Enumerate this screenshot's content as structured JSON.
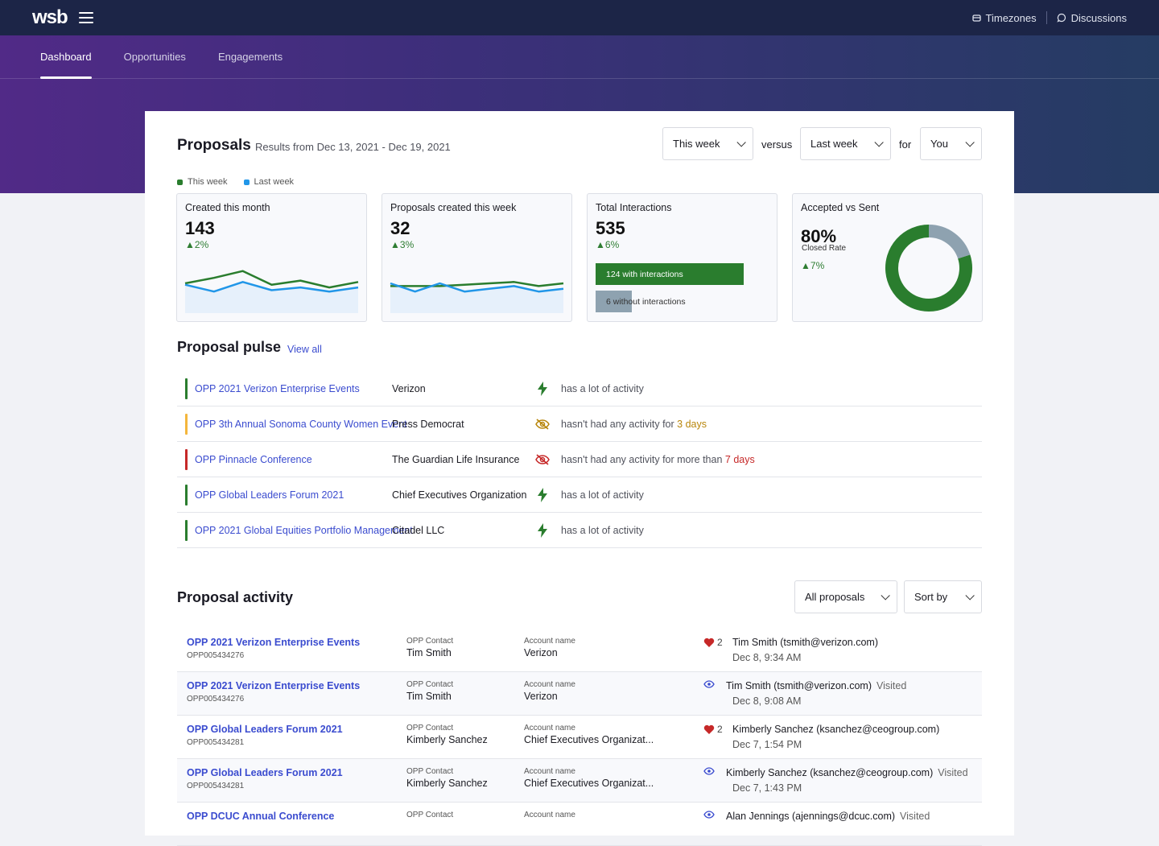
{
  "topbar": {
    "logo": "wsb",
    "timezones": "Timezones",
    "discussions": "Discussions"
  },
  "nav": {
    "tabs": [
      {
        "label": "Dashboard",
        "active": true
      },
      {
        "label": "Opportunities",
        "active": false
      },
      {
        "label": "Engagements",
        "active": false
      }
    ]
  },
  "proposals": {
    "title": "Proposals",
    "range": "Results from Dec 13, 2021 - Dec 19, 2021",
    "period_select": "This week",
    "versus_label": "versus",
    "compare_select": "Last week",
    "for_label": "for",
    "owner_select": "You",
    "legend": [
      {
        "label": "This week",
        "color": "#2a7d2e"
      },
      {
        "label": "Last week",
        "color": "#2196e8"
      }
    ],
    "stats": [
      {
        "label": "Created this month",
        "value": "143",
        "delta": "2%",
        "chart_data": {
          "type": "line",
          "series": [
            {
              "values": [
                0.5,
                0.7,
                0.95,
                0.45,
                0.6,
                0.35,
                0.55
              ],
              "color": "#2a7d2e"
            },
            {
              "values": [
                0.45,
                0.2,
                0.55,
                0.25,
                0.35,
                0.2,
                0.35
              ],
              "color": "#2196e8"
            }
          ]
        }
      },
      {
        "label": "Proposals created this week",
        "value": "32",
        "delta": "3%",
        "chart_data": {
          "type": "line",
          "series": [
            {
              "values": [
                0.4,
                0.4,
                0.4,
                0.45,
                0.5,
                0.55,
                0.4,
                0.5
              ],
              "color": "#2a7d2e"
            },
            {
              "values": [
                0.5,
                0.2,
                0.5,
                0.2,
                0.3,
                0.4,
                0.2,
                0.3
              ],
              "color": "#2196e8"
            }
          ]
        }
      },
      {
        "label": "Total Interactions",
        "value": "535",
        "delta": "6%",
        "with_label": "124 with interactions",
        "with_value": 124,
        "without_label": "6 without interactions",
        "without_value": 6
      },
      {
        "label": "Accepted vs Sent",
        "value": "80%",
        "sublabel": "Closed Rate",
        "delta": "7%",
        "chart_data": {
          "type": "pie",
          "values": [
            80,
            20
          ],
          "colors": [
            "#2a7d2e",
            "#8ea2b0"
          ]
        }
      }
    ]
  },
  "pulse": {
    "title": "Proposal pulse",
    "view_all": "View all",
    "rows": [
      {
        "flag": "#2a7d2e",
        "opp": "OPP 2021 Verizon Enterprise Events",
        "account": "Verizon",
        "icon": "bolt",
        "status": "has a lot of activity",
        "highlight": "",
        "highlight_color": ""
      },
      {
        "flag": "#f4b63c",
        "opp": "OPP 3th Annual Sonoma County Women Event",
        "account": "Press Democrat",
        "icon": "eye-off",
        "status": "hasn't had any activity for ",
        "highlight": "3 days",
        "highlight_color": "#b8860b"
      },
      {
        "flag": "#c62828",
        "opp": "OPP Pinnacle Conference",
        "account": "The Guardian Life Insurance",
        "icon": "eye-off-red",
        "status": "hasn't had any activity for more than ",
        "highlight": "7 days",
        "highlight_color": "#c62828"
      },
      {
        "flag": "#2a7d2e",
        "opp": "OPP Global Leaders Forum 2021",
        "account": "Chief Executives Organization",
        "icon": "bolt",
        "status": "has a lot of activity",
        "highlight": "",
        "highlight_color": ""
      },
      {
        "flag": "#2a7d2e",
        "opp": "OPP 2021 Global Equities Portfolio Management",
        "account": "Citadel LLC",
        "icon": "bolt",
        "status": "has a lot of activity",
        "highlight": "",
        "highlight_color": ""
      }
    ]
  },
  "activity": {
    "title": "Proposal activity",
    "filter_select": "All proposals",
    "sort_select": "Sort by",
    "contact_label": "OPP Contact",
    "account_label": "Account name",
    "rows": [
      {
        "opp": "OPP 2021 Verizon Enterprise Events",
        "id": "OPP005434276",
        "contact": "Tim Smith",
        "account": "Verizon",
        "icon": "heart",
        "count": "2",
        "who": "Tim Smith (tsmith@verizon.com)",
        "visited": "",
        "when": "Dec 8, 9:34 AM"
      },
      {
        "opp": "OPP 2021 Verizon Enterprise Events",
        "id": "OPP005434276",
        "contact": "Tim Smith",
        "account": "Verizon",
        "icon": "eye",
        "count": "",
        "who": "Tim Smith (tsmith@verizon.com)",
        "visited": "Visited",
        "when": "Dec 8, 9:08 AM"
      },
      {
        "opp": "OPP Global Leaders Forum 2021",
        "id": "OPP005434281",
        "contact": "Kimberly Sanchez",
        "account": "Chief Executives Organizat...",
        "icon": "heart",
        "count": "2",
        "who": "Kimberly Sanchez (ksanchez@ceogroup.com)",
        "visited": "",
        "when": "Dec 7, 1:54 PM"
      },
      {
        "opp": "OPP Global Leaders Forum 2021",
        "id": "OPP005434281",
        "contact": "Kimberly Sanchez",
        "account": "Chief Executives Organizat...",
        "icon": "eye",
        "count": "",
        "who": "Kimberly Sanchez (ksanchez@ceogroup.com)",
        "visited": "Visited",
        "when": "Dec 7, 1:43 PM"
      },
      {
        "opp": "OPP DCUC Annual Conference",
        "id": "",
        "contact": "",
        "account": "",
        "icon": "eye",
        "count": "",
        "who": "Alan Jennings (ajennings@dcuc.com)",
        "visited": "Visited",
        "when": ""
      }
    ]
  }
}
